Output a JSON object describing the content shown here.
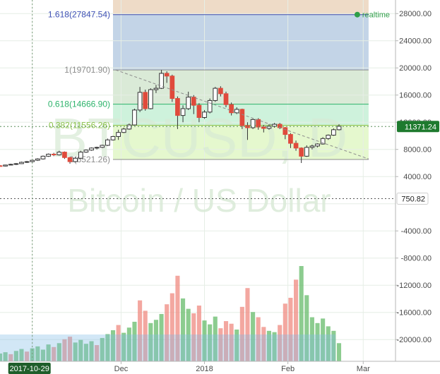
{
  "chart_data": {
    "type": "candlestick",
    "symbol": "BTCUSD, D",
    "subtitle": "Bitcoin / US Dollar",
    "y_ticks": [
      "28000.00",
      "24000.00",
      "20000.00",
      "16000.00",
      "12000.00",
      "8000.00",
      "4000.00",
      "-4000.00",
      "-8000.00",
      "-12000.00",
      "-16000.00",
      "-20000.00"
    ],
    "y_tick_values": [
      28000,
      24000,
      20000,
      16000,
      12000,
      8000,
      4000,
      -4000,
      -8000,
      -12000,
      -16000,
      -20000
    ],
    "ylim": [
      -23200,
      30000
    ],
    "x_ticks": [
      "2017-10-29",
      "Dec",
      "2018",
      "Feb",
      "Mar"
    ],
    "x_tick_dates": [
      "2017-10-29",
      "2017-12-01",
      "2018-01-01",
      "2018-02-01",
      "2018-03-01"
    ],
    "xlim": [
      "2017-10-17",
      "2018-03-13"
    ],
    "last_price": "11371.24",
    "last_price_value": 11371.24,
    "marker_price": "750.82",
    "marker_price_value": 750.82,
    "realtime_label": "realtime",
    "fib_levels": [
      {
        "label": "1.618(27847.54)",
        "value": 27847.54,
        "color": "#3f51b5"
      },
      {
        "label": "1(19701.90)",
        "value": 19701.9,
        "color": "#8c8c8c"
      },
      {
        "label": "0.618(14666.90)",
        "value": 14666.9,
        "color": "#2db36b"
      },
      {
        "label": "0.382(11556.26)",
        "value": 11556.26,
        "color": "#8bc34a"
      },
      {
        "label": "0(6521.26)",
        "value": 6521.26,
        "color": "#8c8c8c"
      }
    ],
    "fib_start_date": "2017-11-28",
    "fib_end_date": "2018-03-03",
    "trend_line": {
      "start_date": "2017-11-29",
      "start_value": 19700,
      "end_date": "2018-03-03",
      "end_value": 6600
    },
    "candles": [
      [
        "2017-10-17",
        5600,
        5700,
        5500,
        5550
      ],
      [
        "2017-10-19",
        5550,
        5750,
        5500,
        5700
      ],
      [
        "2017-10-21",
        5700,
        5900,
        5650,
        5800
      ],
      [
        "2017-10-23",
        5800,
        6000,
        5700,
        5900
      ],
      [
        "2017-10-25",
        5900,
        6200,
        5850,
        6100
      ],
      [
        "2017-10-27",
        6100,
        6300,
        6000,
        6200
      ],
      [
        "2017-10-29",
        6200,
        6500,
        6100,
        6400
      ],
      [
        "2017-10-31",
        6400,
        6700,
        6300,
        6600
      ],
      [
        "2017-11-02",
        6600,
        7100,
        6500,
        7000
      ],
      [
        "2017-11-04",
        7000,
        7400,
        6900,
        7300
      ],
      [
        "2017-11-06",
        7300,
        7500,
        7000,
        7200
      ],
      [
        "2017-11-08",
        7200,
        7800,
        7100,
        7600
      ],
      [
        "2017-11-10",
        7600,
        7700,
        6600,
        6800
      ],
      [
        "2017-11-12",
        6800,
        6900,
        5900,
        6200
      ],
      [
        "2017-11-14",
        6200,
        6900,
        6100,
        6700
      ],
      [
        "2017-11-16",
        6700,
        7800,
        6600,
        7600
      ],
      [
        "2017-11-18",
        7600,
        8000,
        7500,
        7900
      ],
      [
        "2017-11-20",
        7900,
        8300,
        7800,
        8200
      ],
      [
        "2017-11-22",
        8200,
        8400,
        8000,
        8300
      ],
      [
        "2017-11-24",
        8300,
        8700,
        8200,
        8600
      ],
      [
        "2017-11-26",
        8600,
        9600,
        8500,
        9400
      ],
      [
        "2017-11-28",
        9400,
        10000,
        9300,
        9900
      ],
      [
        "2017-11-30",
        9900,
        10900,
        9400,
        10500
      ],
      [
        "2017-12-02",
        10500,
        11200,
        10400,
        11000
      ],
      [
        "2017-12-04",
        11000,
        11800,
        10900,
        11600
      ],
      [
        "2017-12-06",
        11600,
        14000,
        11500,
        13800
      ],
      [
        "2017-12-08",
        13800,
        17200,
        13500,
        16400
      ],
      [
        "2017-12-10",
        16400,
        16800,
        13700,
        14000
      ],
      [
        "2017-12-12",
        14000,
        17000,
        13900,
        16800
      ],
      [
        "2017-12-14",
        16800,
        17500,
        16300,
        17000
      ],
      [
        "2017-12-16",
        17000,
        19700,
        16900,
        19200
      ],
      [
        "2017-12-18",
        19200,
        19500,
        17800,
        18800
      ],
      [
        "2017-12-20",
        18800,
        19000,
        15000,
        15500
      ],
      [
        "2017-12-22",
        15500,
        15800,
        11000,
        13000
      ],
      [
        "2017-12-24",
        13000,
        14500,
        12000,
        14000
      ],
      [
        "2017-12-26",
        14000,
        16500,
        13800,
        15700
      ],
      [
        "2017-12-28",
        15700,
        16000,
        13200,
        14500
      ],
      [
        "2017-12-30",
        14500,
        14800,
        12000,
        12700
      ],
      [
        "2018-01-01",
        12700,
        13800,
        12500,
        13500
      ],
      [
        "2018-01-03",
        13500,
        15500,
        13300,
        15200
      ],
      [
        "2018-01-05",
        15200,
        17200,
        15000,
        17000
      ],
      [
        "2018-01-07",
        17000,
        17300,
        15800,
        16200
      ],
      [
        "2018-01-09",
        16200,
        16500,
        14200,
        14600
      ],
      [
        "2018-01-11",
        14600,
        14900,
        13000,
        13400
      ],
      [
        "2018-01-13",
        13400,
        14200,
        13200,
        13900
      ],
      [
        "2018-01-15",
        13900,
        14000,
        11000,
        11500
      ],
      [
        "2018-01-17",
        11500,
        12000,
        9400,
        11200
      ],
      [
        "2018-01-19",
        11200,
        12500,
        11000,
        12400
      ],
      [
        "2018-01-21",
        12400,
        12600,
        10900,
        11300
      ],
      [
        "2018-01-23",
        11300,
        11600,
        10500,
        11100
      ],
      [
        "2018-01-25",
        11100,
        11700,
        10900,
        11400
      ],
      [
        "2018-01-27",
        11400,
        11900,
        11200,
        11700
      ],
      [
        "2018-01-29",
        11700,
        11900,
        11000,
        11200
      ],
      [
        "2018-01-31",
        11200,
        11300,
        9500,
        10200
      ],
      [
        "2018-02-02",
        10200,
        10400,
        8200,
        8900
      ],
      [
        "2018-02-04",
        8900,
        9300,
        7800,
        8200
      ],
      [
        "2018-02-06",
        8200,
        8300,
        6000,
        7000
      ],
      [
        "2018-02-08",
        7000,
        8600,
        6900,
        8300
      ],
      [
        "2018-02-10",
        8300,
        8700,
        8000,
        8500
      ],
      [
        "2018-02-12",
        8500,
        8900,
        8300,
        8800
      ],
      [
        "2018-02-14",
        8800,
        9800,
        8700,
        9600
      ],
      [
        "2018-02-16",
        9600,
        10200,
        9400,
        10100
      ],
      [
        "2018-02-18",
        10100,
        11100,
        10000,
        10900
      ],
      [
        "2018-02-20",
        10900,
        11700,
        10800,
        11400
      ]
    ],
    "volumes": [
      [
        1200,
        1
      ],
      [
        1400,
        1
      ],
      [
        1100,
        0
      ],
      [
        1600,
        1
      ],
      [
        1900,
        1
      ],
      [
        1500,
        0
      ],
      [
        2000,
        1
      ],
      [
        2300,
        1
      ],
      [
        1800,
        1
      ],
      [
        2600,
        1
      ],
      [
        2200,
        0
      ],
      [
        2800,
        1
      ],
      [
        3400,
        0
      ],
      [
        3800,
        0
      ],
      [
        2900,
        1
      ],
      [
        3300,
        1
      ],
      [
        2700,
        1
      ],
      [
        3100,
        1
      ],
      [
        2500,
        0
      ],
      [
        3600,
        1
      ],
      [
        4200,
        1
      ],
      [
        4800,
        1
      ],
      [
        5600,
        0
      ],
      [
        4400,
        1
      ],
      [
        5200,
        1
      ],
      [
        6100,
        1
      ],
      [
        9400,
        0
      ],
      [
        7800,
        0
      ],
      [
        5900,
        1
      ],
      [
        6400,
        1
      ],
      [
        7300,
        1
      ],
      [
        8800,
        0
      ],
      [
        10500,
        0
      ],
      [
        13200,
        0
      ],
      [
        9700,
        1
      ],
      [
        8100,
        1
      ],
      [
        7400,
        0
      ],
      [
        8600,
        0
      ],
      [
        6300,
        1
      ],
      [
        5700,
        1
      ],
      [
        6900,
        1
      ],
      [
        5100,
        0
      ],
      [
        6200,
        0
      ],
      [
        5800,
        0
      ],
      [
        4900,
        1
      ],
      [
        8400,
        0
      ],
      [
        11300,
        0
      ],
      [
        7600,
        1
      ],
      [
        6800,
        0
      ],
      [
        5300,
        0
      ],
      [
        4700,
        1
      ],
      [
        4500,
        1
      ],
      [
        5600,
        0
      ],
      [
        8900,
        0
      ],
      [
        9800,
        0
      ],
      [
        12600,
        0
      ],
      [
        14700,
        1
      ],
      [
        10200,
        1
      ],
      [
        6800,
        1
      ],
      [
        5900,
        1
      ],
      [
        6600,
        1
      ],
      [
        5400,
        1
      ],
      [
        4700,
        1
      ],
      [
        2800,
        1
      ]
    ]
  }
}
